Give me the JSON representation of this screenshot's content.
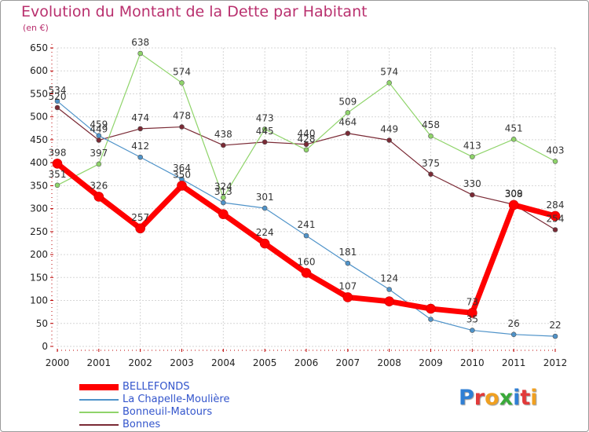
{
  "title": "Evolution du Montant de la Dette par Habitant",
  "subtitle": "(en €)",
  "logo": {
    "text": "Proxiti",
    "letters": [
      {
        "char": "P",
        "color": "#2f7fd4"
      },
      {
        "char": "r",
        "color": "#e23a3a"
      },
      {
        "char": "o",
        "color": "#f0a020"
      },
      {
        "char": "x",
        "color": "#3aaa3a"
      },
      {
        "char": "i",
        "color": "#2f7fd4"
      },
      {
        "char": "t",
        "color": "#e23a3a"
      },
      {
        "char": "i",
        "color": "#f0a020"
      }
    ]
  },
  "chart_data": {
    "type": "line",
    "x": [
      2000,
      2001,
      2002,
      2003,
      2004,
      2005,
      2006,
      2007,
      2008,
      2009,
      2010,
      2011,
      2012
    ],
    "ylim": [
      0,
      650
    ],
    "yticks": [
      0,
      50,
      100,
      150,
      200,
      250,
      300,
      350,
      400,
      450,
      500,
      550,
      600,
      650
    ],
    "grid": true,
    "legend_position": "bottom-left",
    "series": [
      {
        "name": "BELLEFONDS",
        "color": "#ff0000",
        "values": [
          398,
          326,
          257,
          350,
          288,
          224,
          160,
          107,
          98,
          82,
          73,
          308,
          284
        ],
        "labels": [
          "398",
          "326",
          "257",
          "350",
          "",
          "224",
          "160",
          "107",
          "",
          "",
          "73",
          "308",
          "284"
        ]
      },
      {
        "name": "La Chapelle-Moulière",
        "color": "#4f93c9",
        "values": [
          534,
          459,
          412,
          364,
          313,
          301,
          241,
          181,
          124,
          59,
          35,
          26,
          22
        ],
        "labels": [
          "534",
          "459",
          "412",
          "364",
          "313",
          "301",
          "241",
          "181",
          "124",
          "",
          "35",
          "26",
          "22"
        ]
      },
      {
        "name": "Bonneuil-Matours",
        "color": "#8fd46a",
        "values": [
          351,
          397,
          638,
          574,
          324,
          473,
          428,
          509,
          574,
          458,
          413,
          451,
          403
        ],
        "labels": [
          "351",
          "397",
          "638",
          "574",
          "324",
          "473",
          "428",
          "509",
          "574",
          "458",
          "413",
          "451",
          "403"
        ]
      },
      {
        "name": "Bonnes",
        "color": "#7a2a35",
        "values": [
          520,
          449,
          474,
          478,
          438,
          445,
          440,
          464,
          449,
          375,
          330,
          309,
          254
        ],
        "labels": [
          "520",
          "449",
          "474",
          "478",
          "438",
          "445",
          "440",
          "464",
          "449",
          "375",
          "330",
          "309",
          "254"
        ]
      }
    ]
  }
}
